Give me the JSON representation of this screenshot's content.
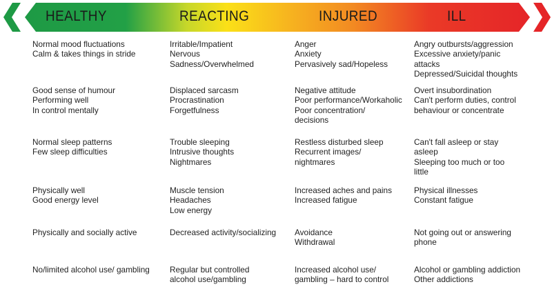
{
  "header": {
    "stages": [
      "HEALTHY",
      "REACTING",
      "INJURED",
      "ILL"
    ],
    "colors": {
      "green": "#1e9a45",
      "yellow": "#f7dc17",
      "orange": "#f28a22",
      "red": "#e52528"
    }
  },
  "rows": [
    [
      "Normal mood fluctuations\nCalm & takes things in stride",
      "Irritable/Impatient\nNervous\nSadness/Overwhelmed",
      "Anger\nAnxiety\nPervasively sad/Hopeless",
      "Angry outbursts/aggression\nExcessive anxiety/panic\nattacks\nDepressed/Suicidal thoughts"
    ],
    [
      "Good sense of humour\nPerforming well\nIn control mentally",
      "Displaced sarcasm\nProcrastination\nForgetfulness",
      "Negative attitude\nPoor performance/Workaholic\nPoor concentration/\ndecisions",
      "Overt insubordination\nCan't perform duties, control\nbehaviour or concentrate"
    ],
    [
      "Normal sleep patterns\nFew sleep difficulties",
      "Trouble sleeping\nIntrusive thoughts\nNightmares",
      "Restless disturbed sleep\nRecurrent images/\nnightmares",
      "Can't fall asleep or stay\nasleep\nSleeping too much or too\nlittle"
    ],
    [
      "Physically well\nGood energy level",
      "Muscle tension\nHeadaches\nLow energy",
      "Increased aches and pains\nIncreased fatigue",
      "Physical illnesses\nConstant fatigue"
    ],
    [
      "Physically and socially active",
      "Decreased activity/socializing",
      "Avoidance\nWithdrawal",
      "Not going out or answering\nphone"
    ],
    [
      "No/limited alcohol use/ gambling",
      "Regular but controlled\nalcohol use/gambling",
      "Increased alcohol use/\ngambling – hard to control",
      "Alcohol or gambling addiction\nOther addictions"
    ]
  ]
}
